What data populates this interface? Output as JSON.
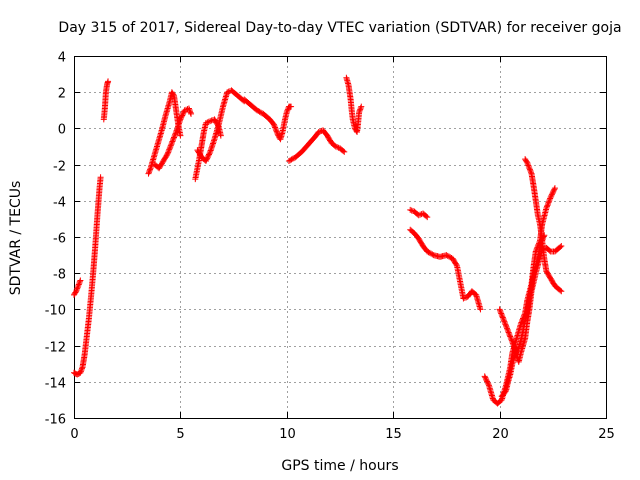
{
  "chart_data": {
    "type": "scatter",
    "title": "Day 315 of 2017, Sidereal Day-to-day VTEC variation (SDTVAR) for receiver goja",
    "xlabel": "GPS time / hours",
    "ylabel": "SDTVAR / TECUs",
    "xlim": [
      0,
      25
    ],
    "ylim": [
      -16,
      4
    ],
    "xticks": [
      "0",
      "5",
      "10",
      "15",
      "20",
      "25"
    ],
    "yticks": [
      "-16",
      "-14",
      "-12",
      "-10",
      "-8",
      "-6",
      "-4",
      "-2",
      "0",
      "2",
      "4"
    ],
    "grid": true,
    "marker": "plus",
    "color": "#ff0000",
    "series": [
      {
        "segments": [
          [
            [
              0.0,
              -9.2
            ],
            [
              0.1,
              -9.0
            ],
            [
              0.2,
              -8.7
            ],
            [
              0.3,
              -8.4
            ]
          ],
          [
            [
              0.0,
              -13.5
            ],
            [
              0.15,
              -13.6
            ],
            [
              0.3,
              -13.5
            ],
            [
              0.4,
              -13.2
            ],
            [
              0.5,
              -12.5
            ],
            [
              0.6,
              -11.5
            ],
            [
              0.7,
              -10.5
            ],
            [
              0.8,
              -9.3
            ],
            [
              0.9,
              -8.0
            ],
            [
              1.0,
              -6.5
            ],
            [
              1.1,
              -4.8
            ],
            [
              1.2,
              -3.3
            ],
            [
              1.25,
              -2.7
            ]
          ],
          [
            [
              1.4,
              0.5
            ],
            [
              1.45,
              1.1
            ],
            [
              1.5,
              2.0
            ],
            [
              1.55,
              2.4
            ],
            [
              1.6,
              2.6
            ]
          ],
          [
            [
              3.5,
              -2.5
            ],
            [
              3.6,
              -2.2
            ],
            [
              3.7,
              -1.8
            ],
            [
              3.9,
              -1.0
            ],
            [
              4.1,
              -0.2
            ],
            [
              4.3,
              0.7
            ],
            [
              4.5,
              1.5
            ],
            [
              4.6,
              2.0
            ],
            [
              4.7,
              1.8
            ],
            [
              4.8,
              1.0
            ],
            [
              4.9,
              0.2
            ],
            [
              5.0,
              -0.4
            ]
          ],
          [
            [
              3.8,
              -2.0
            ],
            [
              4.0,
              -2.2
            ],
            [
              4.2,
              -1.8
            ],
            [
              4.4,
              -1.4
            ],
            [
              4.6,
              -0.8
            ],
            [
              4.8,
              -0.2
            ],
            [
              5.0,
              0.5
            ],
            [
              5.2,
              1.0
            ],
            [
              5.4,
              1.1
            ],
            [
              5.5,
              0.8
            ]
          ],
          [
            [
              5.7,
              -2.8
            ],
            [
              5.8,
              -2.2
            ],
            [
              5.9,
              -1.6
            ],
            [
              6.0,
              -0.9
            ],
            [
              6.1,
              -0.2
            ],
            [
              6.2,
              0.3
            ],
            [
              6.4,
              0.4
            ],
            [
              6.6,
              0.5
            ],
            [
              6.8,
              0.1
            ],
            [
              6.9,
              -0.4
            ]
          ],
          [
            [
              5.8,
              -1.2
            ],
            [
              6.0,
              -1.6
            ],
            [
              6.2,
              -1.8
            ],
            [
              6.4,
              -1.3
            ],
            [
              6.6,
              -0.6
            ],
            [
              6.8,
              0.2
            ],
            [
              7.0,
              1.2
            ],
            [
              7.2,
              2.0
            ],
            [
              7.4,
              2.1
            ],
            [
              7.6,
              1.9
            ],
            [
              7.8,
              1.7
            ],
            [
              8.0,
              1.5
            ]
          ],
          [
            [
              8.0,
              1.6
            ],
            [
              8.3,
              1.3
            ],
            [
              8.6,
              1.0
            ],
            [
              8.9,
              0.8
            ],
            [
              9.2,
              0.5
            ],
            [
              9.4,
              0.2
            ],
            [
              9.6,
              -0.4
            ],
            [
              9.7,
              -0.6
            ],
            [
              9.8,
              -0.2
            ],
            [
              9.9,
              0.4
            ],
            [
              10.0,
              0.9
            ],
            [
              10.1,
              1.2
            ],
            [
              10.2,
              1.2
            ]
          ],
          [
            [
              10.1,
              -1.8
            ],
            [
              10.4,
              -1.6
            ],
            [
              10.7,
              -1.3
            ],
            [
              11.0,
              -0.9
            ],
            [
              11.3,
              -0.5
            ],
            [
              11.5,
              -0.2
            ],
            [
              11.7,
              -0.1
            ],
            [
              11.9,
              -0.4
            ],
            [
              12.1,
              -0.8
            ],
            [
              12.3,
              -1.0
            ],
            [
              12.5,
              -1.1
            ],
            [
              12.7,
              -1.3
            ]
          ],
          [
            [
              12.8,
              2.8
            ],
            [
              12.9,
              2.4
            ],
            [
              13.0,
              1.6
            ],
            [
              13.05,
              1.0
            ],
            [
              13.1,
              0.5
            ],
            [
              13.2,
              0.0
            ],
            [
              13.3,
              -0.2
            ],
            [
              13.35,
              0.3
            ],
            [
              13.4,
              0.9
            ],
            [
              13.5,
              1.2
            ]
          ],
          [
            [
              15.8,
              -4.5
            ],
            [
              16.0,
              -4.6
            ],
            [
              16.2,
              -4.8
            ],
            [
              16.4,
              -4.7
            ],
            [
              16.6,
              -4.9
            ]
          ],
          [
            [
              15.8,
              -5.6
            ],
            [
              16.0,
              -5.8
            ],
            [
              16.2,
              -6.1
            ],
            [
              16.4,
              -6.5
            ],
            [
              16.6,
              -6.8
            ],
            [
              16.9,
              -7.0
            ],
            [
              17.2,
              -7.1
            ],
            [
              17.5,
              -7.0
            ],
            [
              17.8,
              -7.2
            ],
            [
              18.0,
              -7.6
            ],
            [
              18.1,
              -8.2
            ],
            [
              18.2,
              -8.8
            ],
            [
              18.3,
              -9.4
            ],
            [
              18.5,
              -9.3
            ],
            [
              18.7,
              -9.0
            ],
            [
              18.9,
              -9.2
            ],
            [
              19.0,
              -9.6
            ],
            [
              19.1,
              -10.0
            ]
          ],
          [
            [
              19.3,
              -13.7
            ],
            [
              19.5,
              -14.2
            ],
            [
              19.7,
              -15.0
            ],
            [
              19.9,
              -15.2
            ],
            [
              20.1,
              -15.0
            ],
            [
              20.3,
              -14.2
            ],
            [
              20.5,
              -13.2
            ],
            [
              20.6,
              -12.4
            ],
            [
              20.8,
              -11.6
            ],
            [
              21.0,
              -10.8
            ],
            [
              21.2,
              -10.2
            ],
            [
              21.3,
              -9.5
            ],
            [
              21.5,
              -8.6
            ],
            [
              21.6,
              -7.6
            ],
            [
              21.7,
              -6.8
            ],
            [
              21.9,
              -6.2
            ],
            [
              22.0,
              -5.3
            ],
            [
              22.2,
              -4.4
            ],
            [
              22.4,
              -3.8
            ],
            [
              22.6,
              -3.3
            ]
          ],
          [
            [
              20.0,
              -10.0
            ],
            [
              20.2,
              -10.6
            ],
            [
              20.4,
              -11.2
            ],
            [
              20.6,
              -11.8
            ],
            [
              20.8,
              -12.5
            ],
            [
              20.9,
              -12.9
            ],
            [
              21.0,
              -12.4
            ],
            [
              21.2,
              -11.6
            ],
            [
              21.3,
              -10.7
            ],
            [
              21.4,
              -10.0
            ],
            [
              21.5,
              -9.0
            ],
            [
              21.7,
              -8.0
            ],
            [
              21.9,
              -7.1
            ],
            [
              22.0,
              -6.7
            ],
            [
              22.2,
              -6.6
            ],
            [
              22.4,
              -6.8
            ],
            [
              22.6,
              -6.8
            ],
            [
              22.8,
              -6.6
            ],
            [
              22.9,
              -6.5
            ]
          ],
          [
            [
              21.2,
              -1.7
            ],
            [
              21.3,
              -1.9
            ],
            [
              21.5,
              -2.5
            ],
            [
              21.6,
              -3.2
            ],
            [
              21.7,
              -4.0
            ],
            [
              21.8,
              -4.8
            ],
            [
              21.9,
              -5.3
            ],
            [
              22.0,
              -6.2
            ],
            [
              22.1,
              -7.2
            ],
            [
              22.2,
              -7.9
            ],
            [
              22.3,
              -8.1
            ],
            [
              22.4,
              -8.3
            ],
            [
              22.6,
              -8.7
            ],
            [
              22.8,
              -8.9
            ],
            [
              22.9,
              -9.0
            ]
          ],
          [
            [
              20.1,
              -14.8
            ],
            [
              20.3,
              -14.5
            ],
            [
              20.4,
              -14.0
            ],
            [
              20.5,
              -13.6
            ],
            [
              20.6,
              -13.0
            ],
            [
              20.7,
              -12.6
            ],
            [
              20.8,
              -12.3
            ],
            [
              20.9,
              -12.1
            ],
            [
              21.0,
              -11.7
            ],
            [
              21.1,
              -11.2
            ],
            [
              21.2,
              -10.6
            ],
            [
              21.3,
              -10.1
            ],
            [
              21.4,
              -9.4
            ],
            [
              21.5,
              -8.8
            ],
            [
              21.6,
              -8.0
            ],
            [
              21.8,
              -7.2
            ],
            [
              21.9,
              -6.5
            ],
            [
              22.1,
              -5.9
            ]
          ]
        ]
      }
    ]
  }
}
